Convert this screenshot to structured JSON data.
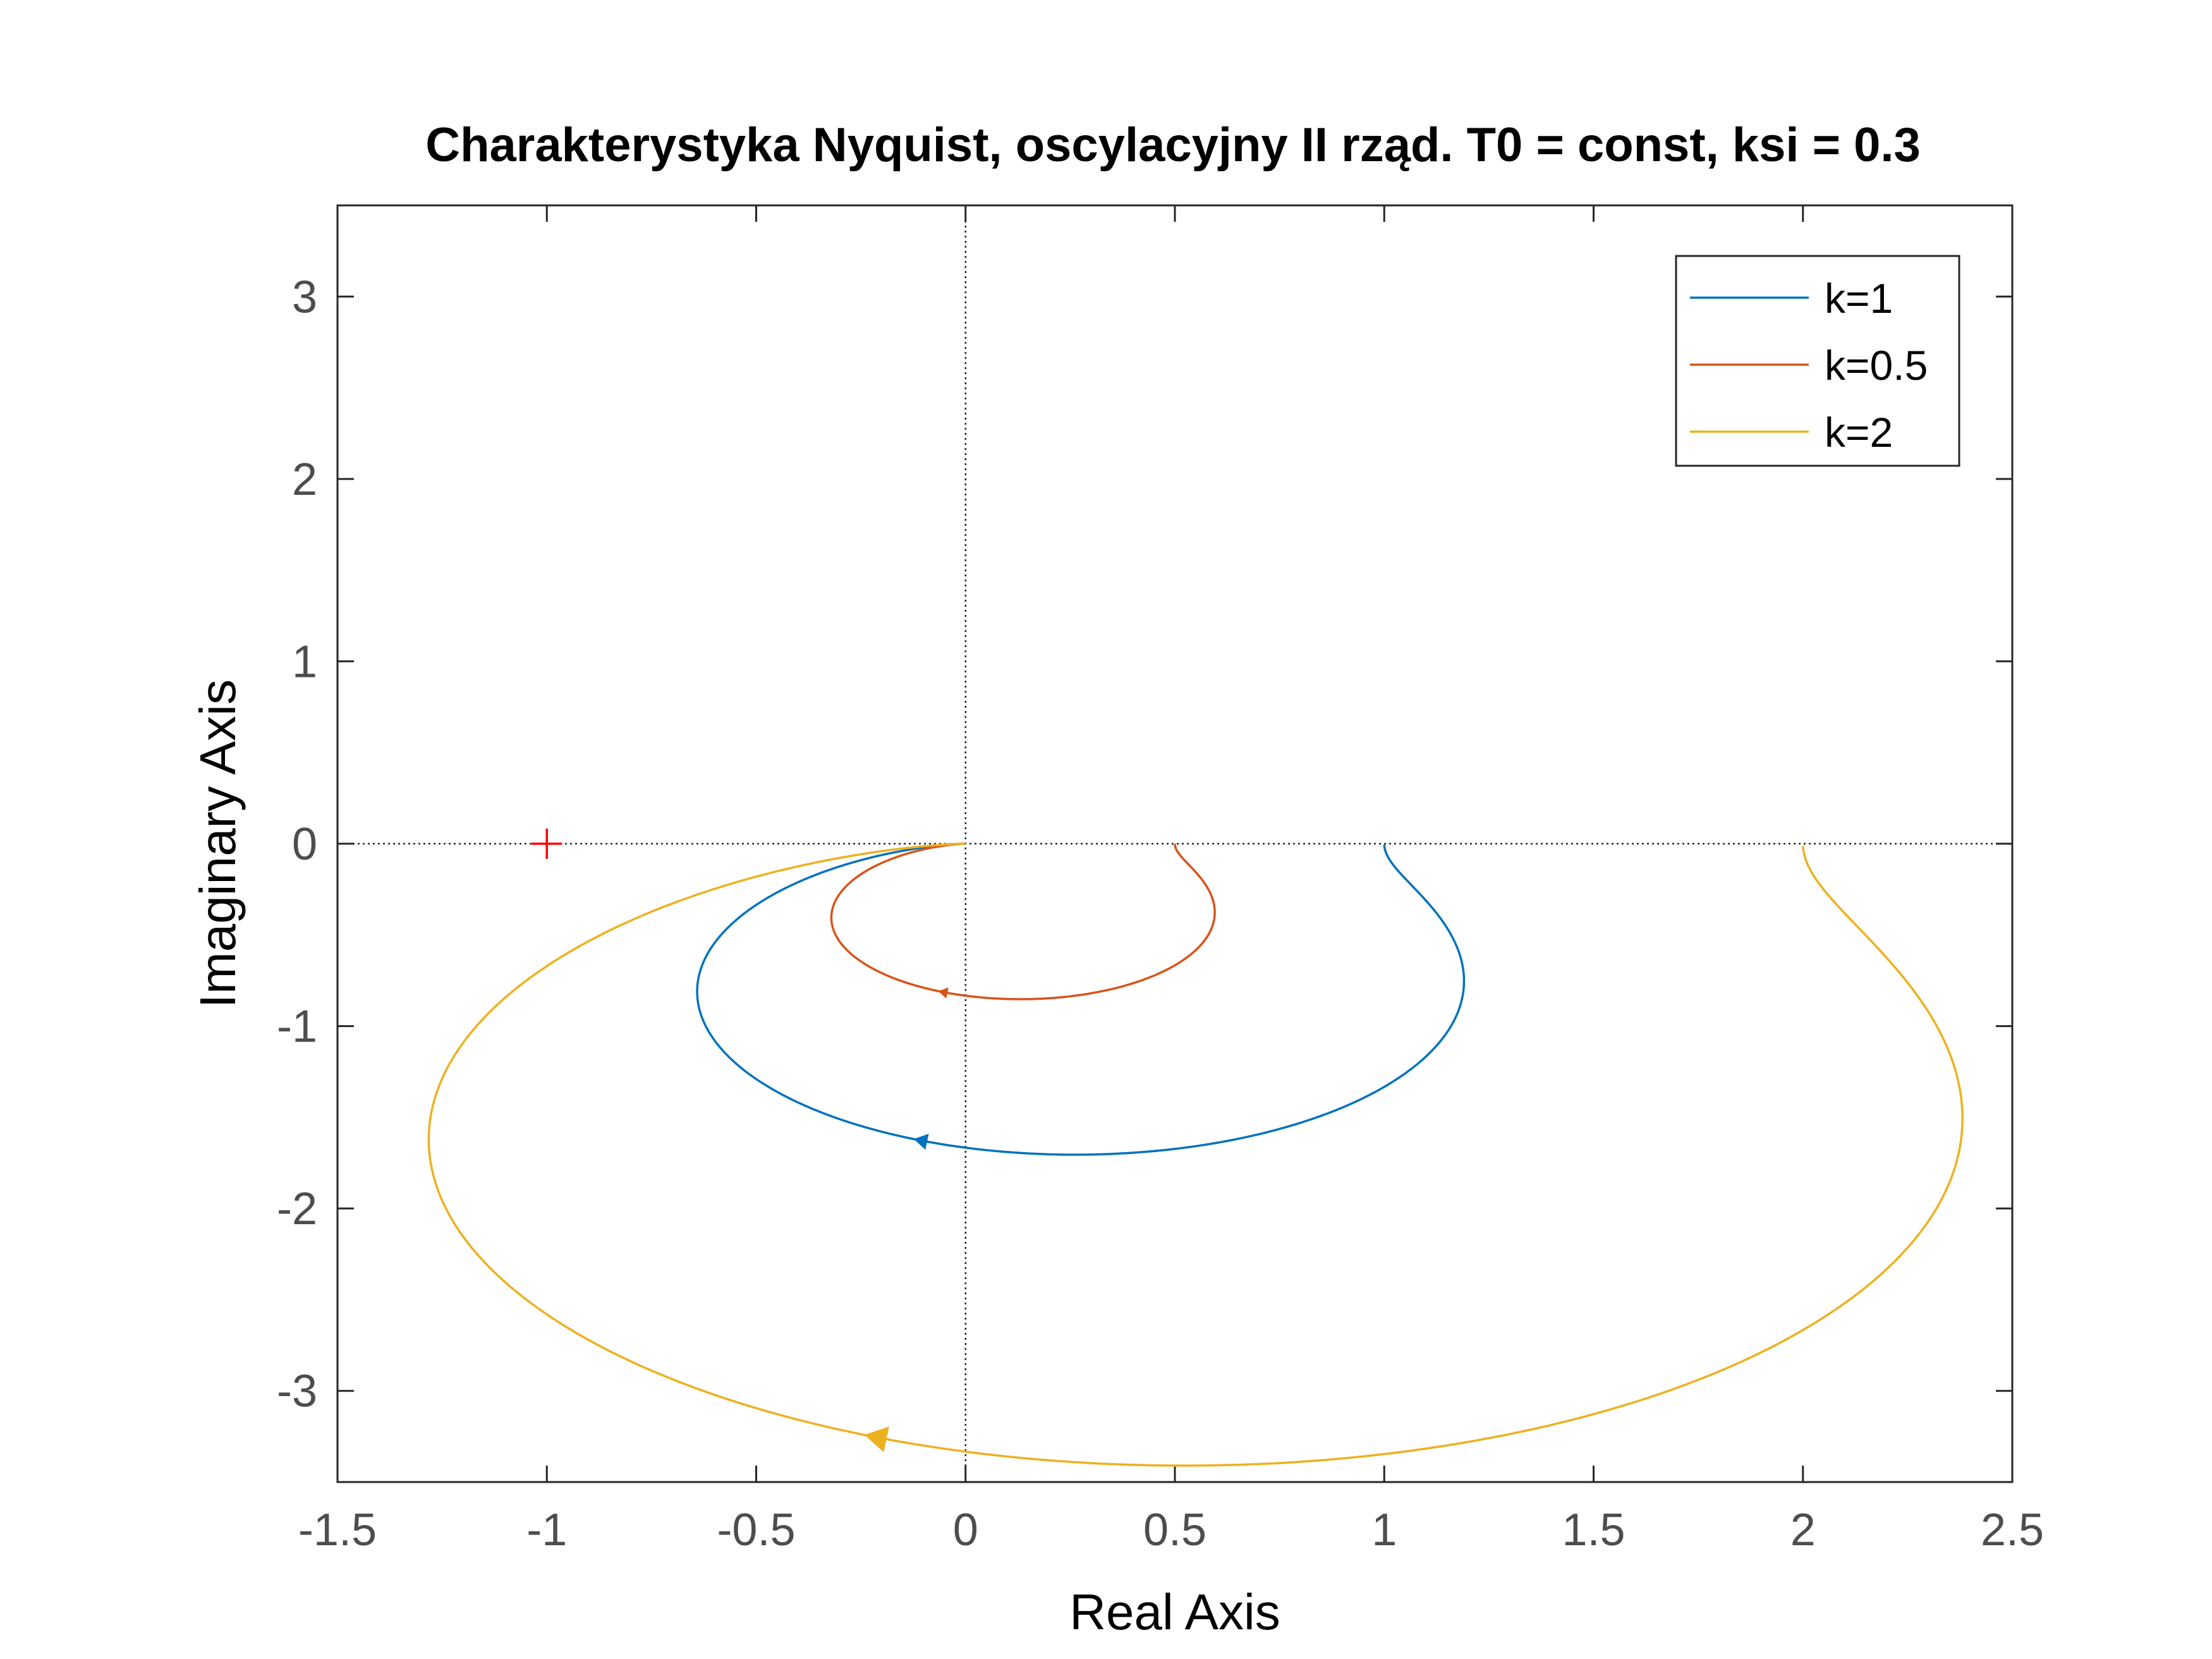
{
  "chart_data": {
    "type": "line",
    "title": "Charakterystyka Nyquist, oscylacyjny II rząd. T0 = const, ksi = 0.3",
    "xlabel": "Real Axis",
    "ylabel": "Imaginary Axis",
    "xlim": [
      -1.5,
      2.5
    ],
    "ylim": [
      -3.5,
      3.5
    ],
    "xticks": [
      -1.5,
      -1,
      -0.5,
      0,
      0.5,
      1,
      1.5,
      2,
      2.5
    ],
    "xtick_labels": [
      "-1.5",
      "-1",
      "-0.5",
      "0",
      "0.5",
      "1",
      "1.5",
      "2",
      "2.5"
    ],
    "yticks": [
      -3,
      -2,
      -1,
      0,
      1,
      2,
      3
    ],
    "ytick_labels": [
      "-3",
      "-2",
      "-1",
      "0",
      "1",
      "2",
      "3"
    ],
    "grid": false,
    "legend_position": "top-right",
    "critical_point": {
      "x": -1,
      "y": 0,
      "color": "#ff0000"
    },
    "transfer": {
      "zeta": 0.3
    },
    "series": [
      {
        "name": "k=1",
        "k": 1,
        "color": "#0072bd"
      },
      {
        "name": "k=0.5",
        "k": 0.5,
        "color": "#d95319"
      },
      {
        "name": "k=2",
        "k": 2,
        "color": "#edb120"
      }
    ]
  }
}
